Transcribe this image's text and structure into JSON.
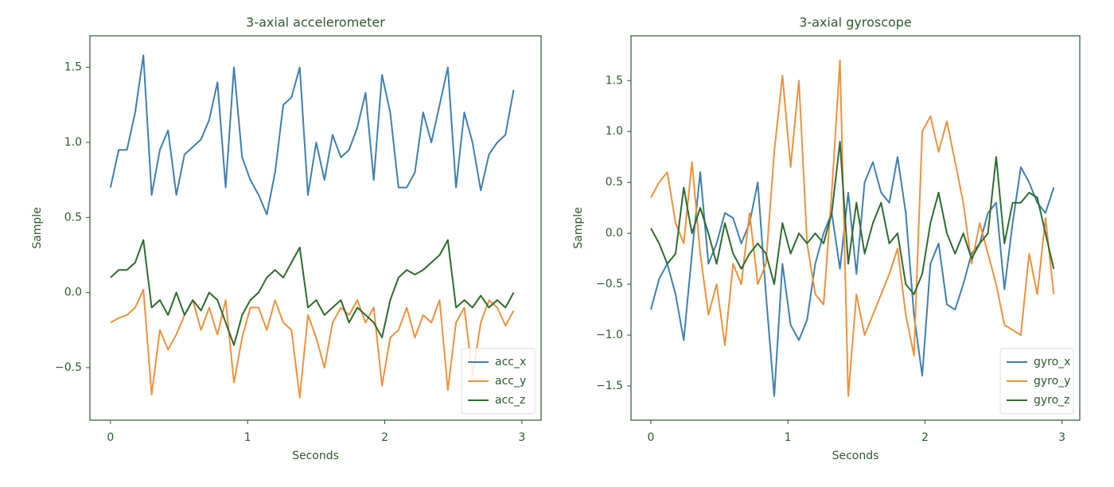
{
  "chart_data": [
    {
      "type": "line",
      "title": "3-axial accelerometer",
      "xlabel": "Seconds",
      "ylabel": "Sample",
      "x": [
        0,
        0.06,
        0.12,
        0.18,
        0.24,
        0.3,
        0.36,
        0.42,
        0.48,
        0.54,
        0.6,
        0.66,
        0.72,
        0.78,
        0.84,
        0.9,
        0.96,
        1.02,
        1.08,
        1.14,
        1.2,
        1.26,
        1.32,
        1.38,
        1.44,
        1.5,
        1.56,
        1.62,
        1.68,
        1.74,
        1.8,
        1.86,
        1.92,
        1.98,
        2.04,
        2.1,
        2.16,
        2.22,
        2.28,
        2.34,
        2.4,
        2.46,
        2.52,
        2.58,
        2.64,
        2.7,
        2.76,
        2.82,
        2.88,
        2.94
      ],
      "xlim": [
        -0.15,
        3.14
      ],
      "xticks": [
        0,
        1,
        2,
        3
      ],
      "ylim": [
        -0.85,
        1.71
      ],
      "yticks": [
        {
          "value": -0.5,
          "label": "−0.5"
        },
        {
          "value": 0,
          "label": "0.0"
        },
        {
          "value": 0.5,
          "label": "0.5"
        },
        {
          "value": 1,
          "label": "1.0"
        },
        {
          "value": 1.5,
          "label": "1.5"
        }
      ],
      "legend": "lower right",
      "series": [
        {
          "name": "acc_x",
          "color": "#3f7fb1",
          "values": [
            0.7,
            0.95,
            0.95,
            1.2,
            1.58,
            0.65,
            0.95,
            1.08,
            0.65,
            0.92,
            0.97,
            1.02,
            1.15,
            1.4,
            0.7,
            1.5,
            0.9,
            0.75,
            0.65,
            0.52,
            0.8,
            1.25,
            1.3,
            1.5,
            0.65,
            1.0,
            0.75,
            1.05,
            0.9,
            0.95,
            1.1,
            1.33,
            0.75,
            1.45,
            1.2,
            0.7,
            0.7,
            0.8,
            1.2,
            1.0,
            1.25,
            1.5,
            0.7,
            1.2,
            1.0,
            0.68,
            0.92,
            1.0,
            1.05,
            1.35
          ]
        },
        {
          "name": "acc_y",
          "color": "#f0913c",
          "values": [
            -0.2,
            -0.17,
            -0.15,
            -0.1,
            0.02,
            -0.68,
            -0.25,
            -0.38,
            -0.28,
            -0.15,
            -0.05,
            -0.25,
            -0.1,
            -0.28,
            -0.05,
            -0.6,
            -0.3,
            -0.1,
            -0.1,
            -0.25,
            -0.05,
            -0.2,
            -0.25,
            -0.7,
            -0.15,
            -0.3,
            -0.5,
            -0.2,
            -0.1,
            -0.15,
            -0.05,
            -0.2,
            -0.1,
            -0.62,
            -0.3,
            -0.25,
            -0.1,
            -0.3,
            -0.15,
            -0.2,
            -0.05,
            -0.65,
            -0.2,
            -0.1,
            -0.55,
            -0.2,
            -0.05,
            -0.1,
            -0.22,
            -0.12
          ]
        },
        {
          "name": "acc_z",
          "color": "#2e6b2e",
          "values": [
            0.1,
            0.15,
            0.15,
            0.2,
            0.35,
            -0.1,
            -0.05,
            -0.15,
            0.0,
            -0.15,
            -0.05,
            -0.12,
            0.0,
            -0.05,
            -0.2,
            -0.35,
            -0.15,
            -0.05,
            0.0,
            0.1,
            0.15,
            0.1,
            0.2,
            0.3,
            -0.1,
            -0.05,
            -0.15,
            -0.1,
            -0.05,
            -0.2,
            -0.1,
            -0.15,
            -0.2,
            -0.3,
            -0.05,
            0.1,
            0.15,
            0.12,
            0.15,
            0.2,
            0.25,
            0.35,
            -0.1,
            -0.05,
            -0.1,
            -0.02,
            -0.1,
            -0.05,
            -0.1,
            0.0
          ]
        }
      ]
    },
    {
      "type": "line",
      "title": "3-axial gyroscope",
      "xlabel": "Seconds",
      "ylabel": "Sample",
      "x": [
        0,
        0.06,
        0.12,
        0.18,
        0.24,
        0.3,
        0.36,
        0.42,
        0.48,
        0.54,
        0.6,
        0.66,
        0.72,
        0.78,
        0.84,
        0.9,
        0.96,
        1.02,
        1.08,
        1.14,
        1.2,
        1.26,
        1.32,
        1.38,
        1.44,
        1.5,
        1.56,
        1.62,
        1.68,
        1.74,
        1.8,
        1.86,
        1.92,
        1.98,
        2.04,
        2.1,
        2.16,
        2.22,
        2.28,
        2.34,
        2.4,
        2.46,
        2.52,
        2.58,
        2.64,
        2.7,
        2.76,
        2.82,
        2.88,
        2.94
      ],
      "xlim": [
        -0.145,
        3.13
      ],
      "xticks": [
        0,
        1,
        2,
        3
      ],
      "ylim": [
        -1.836,
        1.94
      ],
      "yticks": [
        {
          "value": -1.5,
          "label": "−1.5"
        },
        {
          "value": -1,
          "label": "−1.0"
        },
        {
          "value": -0.5,
          "label": "−0.5"
        },
        {
          "value": 0,
          "label": "0.0"
        },
        {
          "value": 0.5,
          "label": "0.5"
        },
        {
          "value": 1,
          "label": "1.0"
        },
        {
          "value": 1.5,
          "label": "1.5"
        }
      ],
      "legend": "lower right",
      "series": [
        {
          "name": "gyro_x",
          "color": "#3f7fb1",
          "values": [
            -0.75,
            -0.45,
            -0.3,
            -0.6,
            -1.05,
            -0.2,
            0.6,
            -0.3,
            -0.1,
            0.2,
            0.15,
            -0.1,
            0.1,
            0.5,
            -0.6,
            -1.6,
            -0.3,
            -0.9,
            -1.05,
            -0.85,
            -0.3,
            0.0,
            0.2,
            -0.35,
            0.4,
            -0.4,
            0.5,
            0.7,
            0.4,
            0.3,
            0.75,
            0.2,
            -0.8,
            -1.4,
            -0.3,
            -0.1,
            -0.7,
            -0.75,
            -0.5,
            -0.2,
            -0.1,
            0.2,
            0.3,
            -0.55,
            0.1,
            0.65,
            0.5,
            0.3,
            0.2,
            0.45
          ]
        },
        {
          "name": "gyro_y",
          "color": "#f0913c",
          "values": [
            0.35,
            0.5,
            0.6,
            0.1,
            -0.1,
            0.7,
            -0.2,
            -0.8,
            -0.5,
            -1.1,
            -0.3,
            -0.5,
            0.2,
            -0.5,
            -0.3,
            0.8,
            1.55,
            0.65,
            1.5,
            -0.1,
            -0.6,
            -0.7,
            0.4,
            1.7,
            -1.6,
            -0.6,
            -1.0,
            -0.8,
            -0.6,
            -0.4,
            -0.15,
            -0.8,
            -1.2,
            1.0,
            1.15,
            0.8,
            1.1,
            0.7,
            0.3,
            -0.3,
            0.1,
            -0.2,
            -0.5,
            -0.9,
            -0.95,
            -1.0,
            -0.2,
            -0.6,
            0.15,
            -0.6
          ]
        },
        {
          "name": "gyro_z",
          "color": "#2e6b2e",
          "values": [
            0.05,
            -0.1,
            -0.3,
            -0.2,
            0.45,
            0.0,
            0.25,
            0.0,
            -0.3,
            0.1,
            -0.2,
            -0.35,
            -0.2,
            -0.1,
            -0.2,
            -0.5,
            0.1,
            -0.2,
            0.0,
            -0.1,
            0.0,
            -0.1,
            0.2,
            0.9,
            -0.3,
            0.3,
            -0.2,
            0.1,
            0.3,
            -0.1,
            0.0,
            -0.5,
            -0.6,
            -0.4,
            0.1,
            0.4,
            0.0,
            -0.2,
            0.0,
            -0.25,
            -0.1,
            0.0,
            0.75,
            -0.1,
            0.3,
            0.3,
            0.4,
            0.35,
            0.0,
            -0.35
          ]
        }
      ]
    }
  ]
}
